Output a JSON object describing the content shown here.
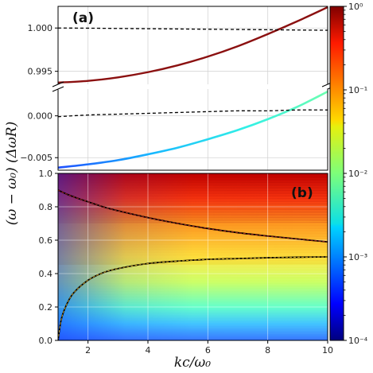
{
  "chart_data": {
    "type": "line",
    "xlabel": "kc/ω₀",
    "ylabel": "(ω − ω₀) (ΔωR)",
    "xlim": [
      1,
      10
    ],
    "x_ticks": [
      "2",
      "4",
      "6",
      "8",
      "10"
    ],
    "grid": true,
    "panels": [
      {
        "label": "(a)",
        "segments": [
          {
            "ylim": [
              0.9935,
              1.0025
            ],
            "y_ticks": [
              "0.995",
              "1.000"
            ],
            "series": [
              {
                "style": "solid",
                "color": "#8b1010",
                "x": [
                  1,
                  2,
                  3,
                  4,
                  5,
                  6,
                  7,
                  8,
                  9,
                  10
                ],
                "y": [
                  0.9937,
                  0.9939,
                  0.9943,
                  0.9949,
                  0.9957,
                  0.9967,
                  0.9979,
                  0.9993,
                  1.0008,
                  1.0024
                ]
              },
              {
                "style": "dashed",
                "color": "#000000",
                "x": [
                  1,
                  2,
                  3,
                  4,
                  5,
                  6,
                  7,
                  8,
                  9,
                  10
                ],
                "y": [
                  1.0,
                  0.99998,
                  0.99995,
                  0.99992,
                  0.99989,
                  0.99986,
                  0.99983,
                  0.9998,
                  0.99977,
                  0.99974
                ]
              }
            ]
          },
          {
            "ylim": [
              -0.0065,
              0.0032
            ],
            "y_ticks": [
              "−0.005",
              "0.000"
            ],
            "series": [
              {
                "style": "solid",
                "colormap": true,
                "x": [
                  1,
                  2,
                  3,
                  4,
                  5,
                  6,
                  7,
                  8,
                  9,
                  10
                ],
                "y": [
                  -0.0062,
                  -0.0058,
                  -0.0053,
                  -0.0046,
                  -0.0038,
                  -0.0028,
                  -0.0017,
                  -0.0004,
                  0.0011,
                  0.0029
                ]
              },
              {
                "style": "dashed",
                "color": "#000000",
                "x": [
                  1,
                  2,
                  3,
                  4,
                  5,
                  6,
                  7,
                  8,
                  9,
                  10
                ],
                "y": [
                  -0.0001,
                  0.0001,
                  0.0002,
                  0.0003,
                  0.0004,
                  0.0005,
                  0.0006,
                  0.0006,
                  0.0007,
                  0.0007
                ]
              }
            ]
          }
        ]
      },
      {
        "label": "(b)",
        "ylim": [
          0.0,
          1.0
        ],
        "y_ticks": [
          "0.0",
          "0.2",
          "0.4",
          "0.6",
          "0.8",
          "1.0"
        ],
        "series": [
          {
            "style": "solid",
            "color": "#000000",
            "x": [
              1,
              1.3,
              1.7,
              2,
              2.5,
              3,
              4,
              5,
              6,
              7,
              8,
              9,
              10
            ],
            "y": [
              0.9,
              0.875,
              0.848,
              0.83,
              0.8,
              0.776,
              0.735,
              0.7,
              0.67,
              0.645,
              0.625,
              0.607,
              0.59
            ]
          },
          {
            "style": "solid",
            "color": "#000000",
            "x": [
              1,
              1.1,
              1.25,
              1.5,
              2,
              2.5,
              3,
              4,
              5,
              6,
              7,
              8,
              9,
              10
            ],
            "y": [
              0.0,
              0.12,
              0.2,
              0.28,
              0.36,
              0.405,
              0.43,
              0.46,
              0.475,
              0.485,
              0.49,
              0.495,
              0.498,
              0.5
            ]
          }
        ]
      }
    ],
    "colorbar": {
      "scale": "log",
      "range": [
        0.0001,
        1
      ],
      "tick_labels": [
        "10⁻⁴",
        "10⁻³",
        "10⁻²",
        "10⁻¹",
        "10⁰"
      ],
      "colormap": "jet"
    }
  }
}
